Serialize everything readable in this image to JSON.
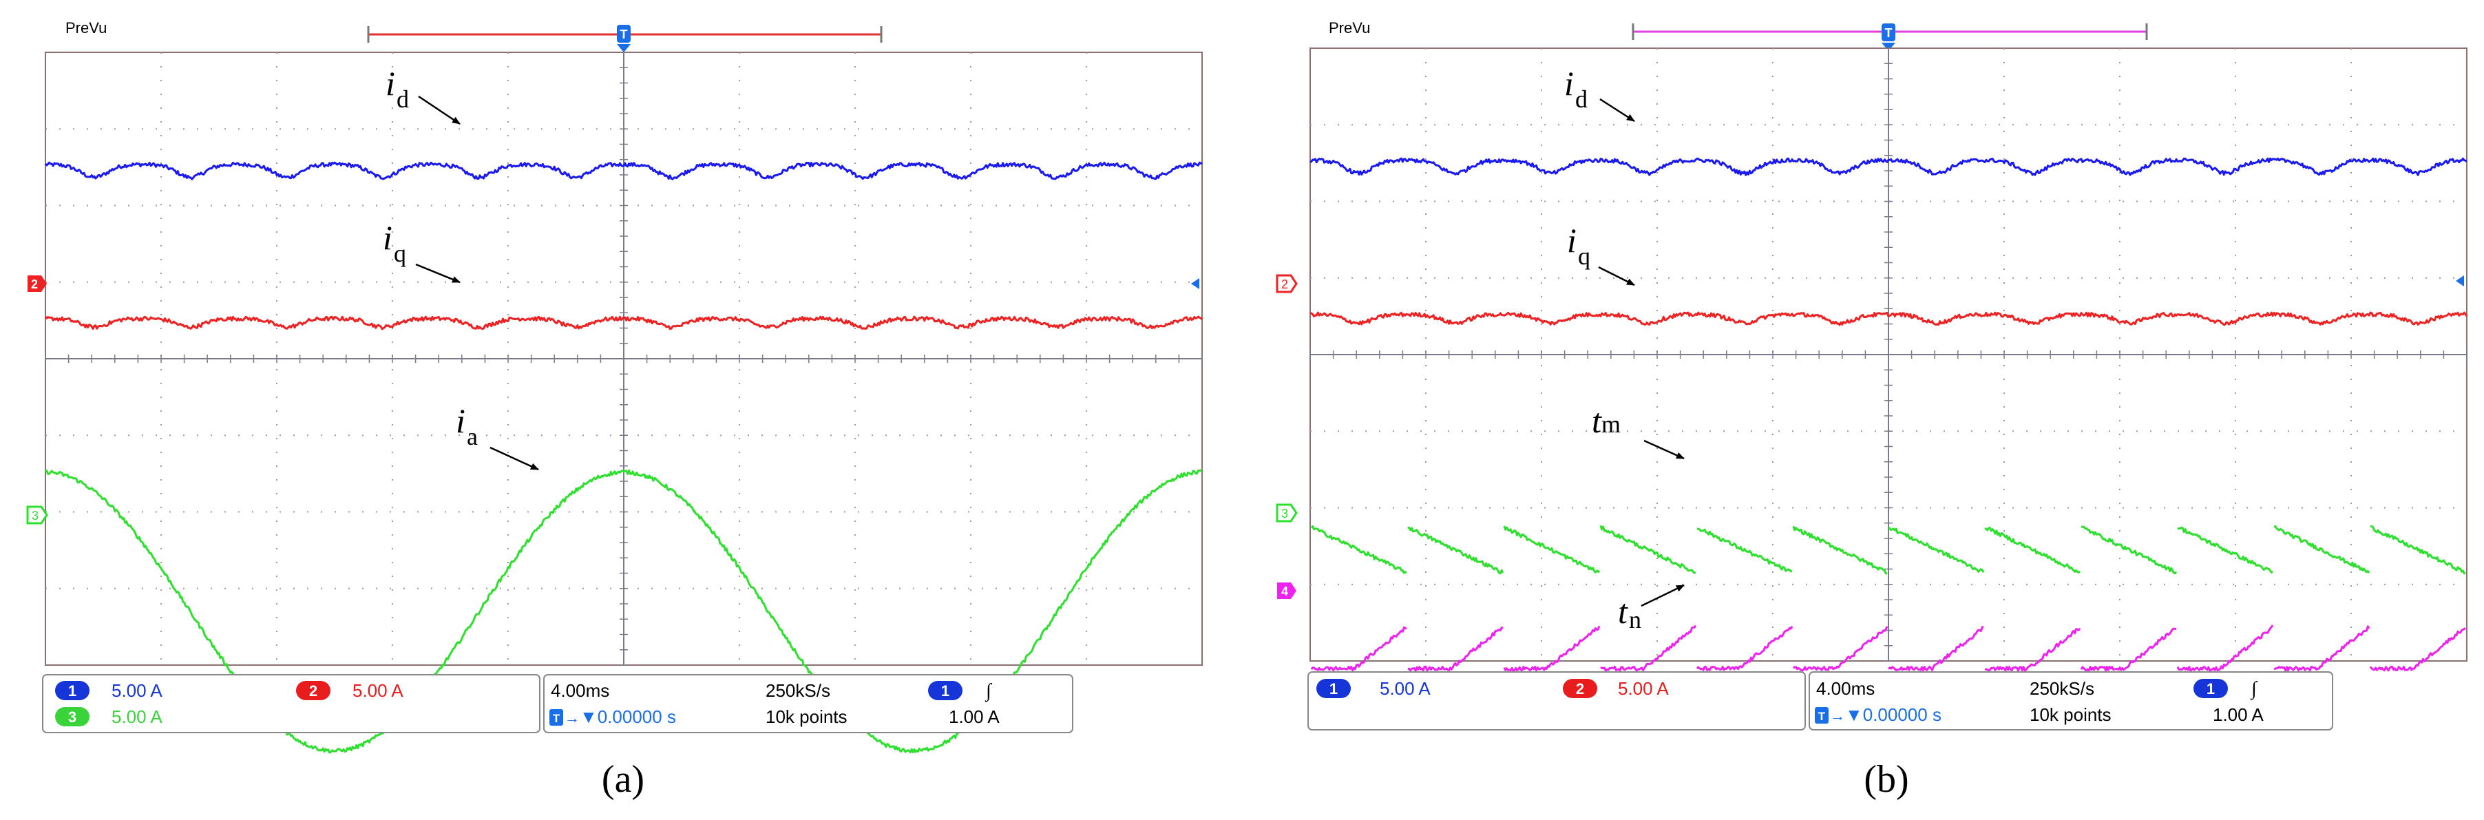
{
  "colors": {
    "ch1": "#1a1af0",
    "ch2": "#ee2222",
    "ch3": "#2ee02e",
    "ch4": "#ee22ee",
    "grid": "#9a9a9a",
    "frame": "#8a7070",
    "trigger": "#1a6ee8",
    "badge_blue": "#1535d8",
    "badge_red": "#e81c1c",
    "badge_green": "#3ad43a"
  },
  "scopes": [
    {
      "id": "a",
      "header": {
        "tag": "PreVu",
        "trigger_marker": "T",
        "record_bar_color": "#e03030"
      },
      "caption": "(a)",
      "channel_markers": [
        {
          "label": "2",
          "color": "#ee2222",
          "style": "filled"
        },
        {
          "label": "3",
          "color": "#2ee02e",
          "style": "outline"
        }
      ],
      "annotations": [
        {
          "main": "i",
          "sub": "d"
        },
        {
          "main": "i",
          "sub": "q"
        },
        {
          "main": "i",
          "sub": "a"
        }
      ],
      "status_left": [
        {
          "badge": "1",
          "badge_color": "#1535d8",
          "text": "5.00 A",
          "text_color": "#1535d8"
        },
        {
          "badge": "2",
          "badge_color": "#e81c1c",
          "text": "5.00 A",
          "text_color": "#e81c1c"
        },
        {
          "badge": "3",
          "badge_color": "#3ad43a",
          "text": "5.00 A",
          "text_color": "#3ad43a"
        }
      ],
      "status_right": {
        "timebase": "4.00ms",
        "sample_rate": "250kS/s",
        "trigger_channel": "1",
        "trigger_slope": "∫",
        "delay": "▼0.00000 s",
        "record_length": "10k points",
        "trigger_level": "1.00 A"
      }
    },
    {
      "id": "b",
      "header": {
        "tag": "PreVu",
        "trigger_marker": "T",
        "record_bar_color": "#e040e0"
      },
      "caption": "(b)",
      "channel_markers": [
        {
          "label": "2",
          "color": "#ee2222",
          "style": "outline"
        },
        {
          "label": "3",
          "color": "#2ee02e",
          "style": "outline"
        },
        {
          "label": "4",
          "color": "#ee22ee",
          "style": "filled"
        }
      ],
      "annotations": [
        {
          "main": "i",
          "sub": "d"
        },
        {
          "main": "i",
          "sub": "q"
        },
        {
          "main": "t",
          "sub": "m"
        },
        {
          "main": "t",
          "sub": "n"
        }
      ],
      "status_left": [
        {
          "badge": "1",
          "badge_color": "#1535d8",
          "text": "5.00 A",
          "text_color": "#1535d8"
        },
        {
          "badge": "2",
          "badge_color": "#e81c1c",
          "text": "5.00 A",
          "text_color": "#e81c1c"
        }
      ],
      "status_right": {
        "timebase": "4.00ms",
        "sample_rate": "250kS/s",
        "trigger_channel": "1",
        "trigger_slope": "∫",
        "delay": "▼0.00000 s",
        "record_length": "10k points",
        "trigger_level": "1.00 A"
      }
    }
  ],
  "chart_data": [
    {
      "type": "line",
      "panel": "a",
      "x_unit": "ms",
      "x_range": [
        -20,
        20
      ],
      "series": [
        {
          "name": "id",
          "kind": "dc_ripple",
          "level_div": 2.5,
          "ripple_div": 0.12,
          "ripple_period_ms": 3.33
        },
        {
          "name": "iq",
          "kind": "dc_ripple",
          "level_div": 0.5,
          "ripple_div": 0.08,
          "ripple_period_ms": 3.33
        },
        {
          "name": "ia",
          "kind": "sine",
          "offset_div": -3.3,
          "amplitude_div": 1.82,
          "period_ms": 20,
          "phase_peak_ms": 0
        }
      ]
    },
    {
      "type": "line",
      "panel": "b",
      "x_unit": "ms",
      "x_range": [
        -20,
        20
      ],
      "series": [
        {
          "name": "id",
          "kind": "dc_ripple",
          "level_div": 2.5,
          "ripple_div": 0.12,
          "ripple_period_ms": 3.33
        },
        {
          "name": "iq",
          "kind": "dc_ripple",
          "level_div": 0.5,
          "ripple_div": 0.08,
          "ripple_period_ms": 3.33
        },
        {
          "name": "tm",
          "kind": "sawtooth_down",
          "high_div": -2.25,
          "low_div": -2.85,
          "period_ms": 3.33
        },
        {
          "name": "tn",
          "kind": "sawtooth_up",
          "high_div": -3.55,
          "low_div": -4.1,
          "period_ms": 3.33
        }
      ]
    }
  ]
}
